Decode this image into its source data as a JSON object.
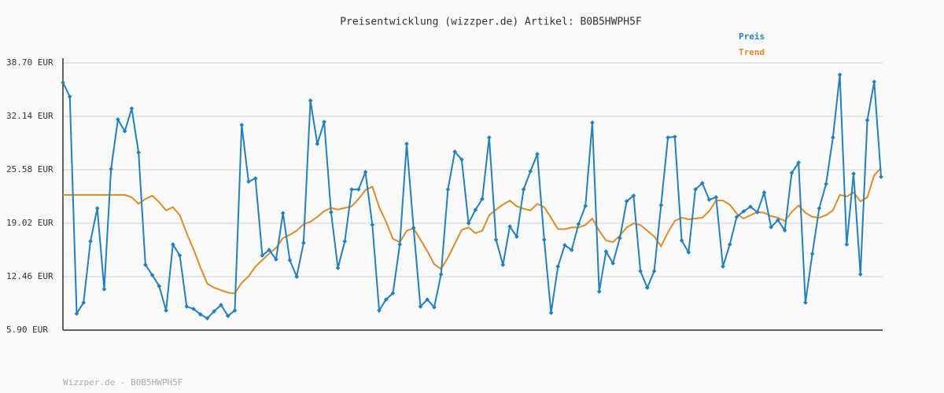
{
  "chart_data": {
    "type": "line",
    "title": "Preisentwicklung (wizzper.de) Artikel: B0B5HWPH5F",
    "footer": "Wizzper.de - B0B5HWPH5F",
    "ylim": [
      5.9,
      38.7
    ],
    "yticks": [
      {
        "value": 5.9,
        "label": "5.90 EUR"
      },
      {
        "value": 12.46,
        "label": "12.46 EUR"
      },
      {
        "value": 19.02,
        "label": "19.02 EUR"
      },
      {
        "value": 25.58,
        "label": "25.58 EUR"
      },
      {
        "value": 32.14,
        "label": "32.14 EUR"
      },
      {
        "value": 38.7,
        "label": "38.70 EUR"
      }
    ],
    "grid": true,
    "legend": "top-right",
    "series": [
      {
        "name": "Preis",
        "color": "#1f80c2",
        "markers": true,
        "values": [
          36.29,
          34.55,
          7.93,
          9.28,
          16.8,
          20.85,
          10.92,
          25.68,
          31.75,
          30.31,
          33.1,
          27.7,
          13.91,
          12.65,
          11.3,
          8.31,
          16.42,
          15.06,
          8.79,
          8.5,
          7.83,
          7.35,
          8.22,
          8.99,
          7.64,
          8.31,
          31.08,
          24.13,
          24.52,
          15.06,
          15.74,
          14.58,
          20.27,
          14.49,
          12.46,
          16.61,
          34.07,
          28.76,
          31.46,
          20.37,
          13.52,
          16.8,
          23.17,
          23.17,
          25.29,
          18.83,
          8.31,
          9.66,
          10.43,
          16.42,
          28.76,
          18.44,
          8.79,
          9.66,
          8.7,
          12.75,
          23.17,
          27.8,
          26.83,
          19.02,
          20.66,
          22.01,
          29.54,
          16.99,
          13.91,
          18.63,
          17.38,
          23.17,
          25.39,
          27.51,
          16.99,
          8.02,
          13.71,
          16.32,
          15.74,
          18.92,
          21.14,
          31.37,
          10.63,
          15.55,
          14.1,
          17.19,
          21.72,
          22.4,
          13.14,
          11.11,
          13.14,
          21.24,
          29.54,
          29.63,
          16.9,
          15.45,
          23.17,
          23.94,
          21.91,
          22.2,
          13.71,
          16.42,
          19.79,
          20.47,
          21.05,
          20.37,
          22.78,
          18.54,
          19.41,
          18.15,
          25.19,
          26.45,
          9.28,
          15.26,
          20.85,
          23.84,
          29.54,
          37.25,
          16.42,
          25.1,
          12.75,
          31.66,
          36.38,
          24.71
        ]
      },
      {
        "name": "Trend",
        "color": "#e08b24",
        "markers": false,
        "values": [
          22.49,
          22.49,
          22.49,
          22.49,
          22.49,
          22.49,
          22.49,
          22.49,
          22.49,
          22.49,
          22.2,
          21.4,
          22.0,
          22.4,
          21.6,
          20.6,
          21.0,
          20.0,
          17.8,
          15.8,
          13.6,
          11.6,
          11.1,
          10.8,
          10.5,
          10.4,
          11.7,
          12.5,
          13.7,
          14.5,
          15.3,
          16.0,
          17.2,
          17.6,
          18.1,
          18.9,
          19.2,
          19.8,
          20.5,
          20.9,
          20.7,
          20.9,
          21.1,
          22.0,
          23.1,
          23.5,
          21.0,
          19.2,
          17.1,
          16.7,
          18.1,
          18.4,
          17.0,
          15.6,
          14.0,
          13.4,
          14.8,
          16.5,
          18.2,
          18.5,
          17.8,
          18.1,
          20.0,
          20.7,
          21.3,
          21.8,
          21.1,
          20.8,
          20.6,
          21.4,
          21.0,
          19.7,
          18.3,
          18.3,
          18.5,
          18.5,
          18.8,
          19.6,
          18.1,
          16.9,
          16.7,
          17.5,
          18.5,
          19.0,
          18.8,
          18.1,
          17.4,
          16.2,
          17.9,
          19.3,
          19.7,
          19.5,
          19.6,
          19.7,
          20.5,
          21.8,
          21.8,
          21.3,
          20.2,
          19.6,
          20.0,
          20.4,
          20.3,
          19.9,
          19.7,
          19.3,
          20.4,
          21.2,
          20.3,
          19.8,
          19.7,
          20.0,
          20.6,
          22.5,
          22.3,
          22.8,
          21.7,
          22.2,
          24.9,
          25.8
        ]
      }
    ]
  }
}
